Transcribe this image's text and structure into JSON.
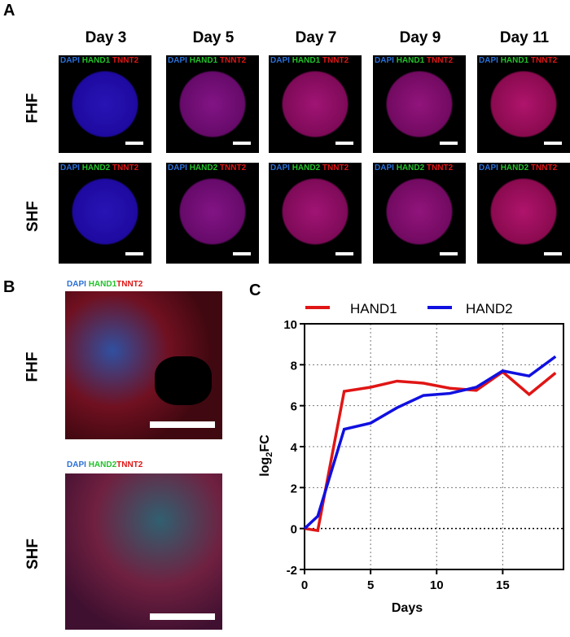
{
  "panels": {
    "a": "A",
    "b": "B",
    "c": "C"
  },
  "days": [
    "Day 3",
    "Day 5",
    "Day 7",
    "Day 9",
    "Day 11"
  ],
  "rows": {
    "fhf": "FHF",
    "shf": "SHF"
  },
  "stains": {
    "dapi": "DAPI",
    "hand1": "HAND1",
    "hand2": "HAND2",
    "tnnt2": "TNNT2"
  },
  "colors": {
    "hand1": "#e01515",
    "hand2": "#1010e0"
  },
  "chart_data": {
    "type": "line",
    "x": [
      0,
      1,
      3,
      5,
      7,
      9,
      11,
      13,
      15,
      17,
      19
    ],
    "series": [
      {
        "name": "HAND1",
        "values": [
          0,
          -0.1,
          6.7,
          6.9,
          7.2,
          7.1,
          6.85,
          6.75,
          7.65,
          6.55,
          7.6
        ]
      },
      {
        "name": "HAND2",
        "values": [
          0,
          0.6,
          4.85,
          5.15,
          5.9,
          6.5,
          6.6,
          6.9,
          7.7,
          7.45,
          8.4
        ]
      }
    ],
    "xlabel": "Days",
    "ylabel": "log2FC",
    "ylabel_main": "log",
    "ylabel_sub": "2",
    "ylabel_tail": "FC",
    "xlim": [
      0,
      19.6
    ],
    "ylim": [
      -2,
      10
    ],
    "xticks": [
      "0",
      "5",
      "10",
      "15"
    ],
    "yticks": [
      "-2",
      "0",
      "2",
      "4",
      "6",
      "8",
      "10"
    ],
    "grid": true,
    "legend": "top"
  }
}
